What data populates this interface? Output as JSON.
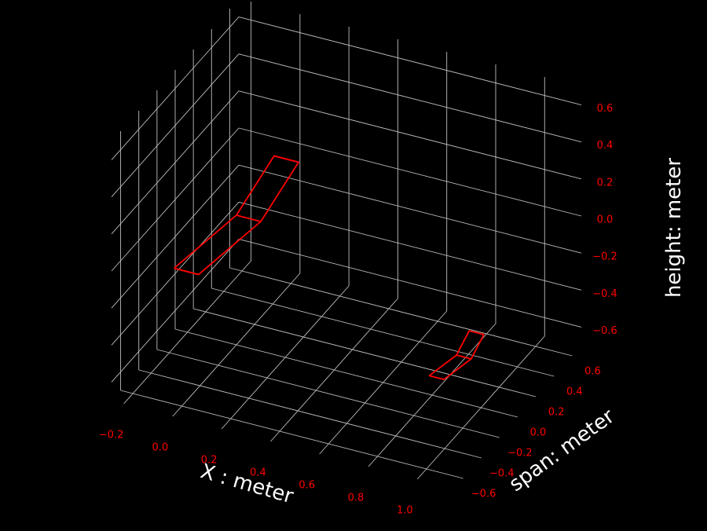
{
  "chart_data": {
    "type": "line",
    "projection": "3d",
    "background": "#000000",
    "grid": true,
    "grid_color": "#bdbdbd",
    "tick_label_color": "#ff0000",
    "axis_label_color": "#ffffff",
    "series_color": "#ff0000",
    "axes": {
      "x": {
        "label": "X : meter",
        "ticks": [
          -0.2,
          0.0,
          0.2,
          0.4,
          0.6,
          0.8,
          1.0
        ],
        "tick_labels": [
          "−0.2",
          "0.0",
          "0.2",
          "0.4",
          "0.6",
          "0.8",
          "1.0"
        ],
        "range": [
          -0.25,
          1.15
        ]
      },
      "y": {
        "label": "span: meter",
        "ticks": [
          -0.6,
          -0.4,
          -0.2,
          0.0,
          0.2,
          0.4,
          0.6
        ],
        "tick_labels": [
          "−0.6",
          "−0.4",
          "−0.2",
          "0.0",
          "0.2",
          "0.4",
          "0.6"
        ],
        "range": [
          -0.7,
          0.7
        ]
      },
      "z": {
        "label": "height: meter",
        "ticks": [
          -0.6,
          -0.4,
          -0.2,
          0.0,
          0.2,
          0.4,
          0.6
        ],
        "tick_labels": [
          "−0.6",
          "−0.4",
          "−0.2",
          "0.0",
          "0.2",
          "0.4",
          "0.6"
        ],
        "range": [
          -0.7,
          0.7
        ]
      }
    },
    "series": [
      {
        "segments": [
          [
            [
              -0.05,
              -0.55,
              0.0
            ],
            [
              0.05,
              -0.55,
              0.0
            ],
            [
              0.1,
              0.0,
              0.0
            ],
            [
              0.05,
              0.55,
              0.0
            ],
            [
              -0.05,
              0.55,
              0.0
            ],
            [
              0.0,
              0.0,
              0.0
            ],
            [
              -0.05,
              -0.55,
              0.0
            ]
          ],
          [
            [
              0.0,
              0.0,
              0.0
            ],
            [
              0.1,
              0.0,
              0.0
            ]
          ],
          [
            [
              -0.05,
              -0.55,
              0.0
            ],
            [
              0.05,
              -0.55,
              0.0
            ]
          ],
          [
            [
              -0.05,
              0.55,
              0.0
            ],
            [
              0.05,
              0.55,
              0.0
            ]
          ]
        ]
      },
      {
        "segments": [
          [
            [
              0.87,
              -0.22,
              -0.45
            ],
            [
              0.93,
              -0.22,
              -0.45
            ],
            [
              0.96,
              0.0,
              -0.45
            ],
            [
              0.93,
              0.22,
              -0.45
            ],
            [
              0.87,
              0.22,
              -0.45
            ],
            [
              0.9,
              0.0,
              -0.45
            ],
            [
              0.87,
              -0.22,
              -0.45
            ]
          ],
          [
            [
              0.9,
              0.0,
              -0.45
            ],
            [
              0.96,
              0.0,
              -0.45
            ]
          ]
        ]
      }
    ]
  }
}
